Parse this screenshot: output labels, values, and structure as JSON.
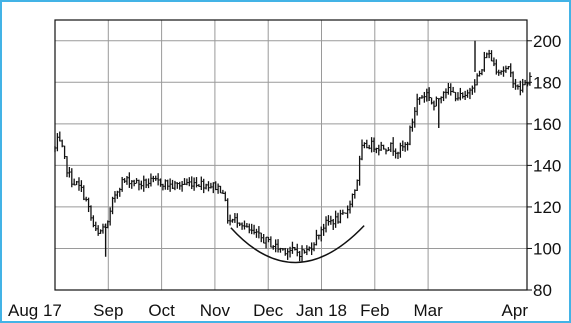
{
  "chart_data": {
    "type": "line",
    "style": "price bar chart (high-low bars)",
    "title": "",
    "xlabel": "",
    "ylabel": "",
    "x_tick_labels": [
      "Aug 17",
      "Sep",
      "Oct",
      "Nov",
      "Dec",
      "Jan 18",
      "Feb",
      "Mar",
      "Apr"
    ],
    "y_ticks": [
      80,
      100,
      120,
      140,
      160,
      180,
      200
    ],
    "ylim": [
      80,
      210
    ],
    "y_axis_position": "right",
    "grid": true,
    "annotation": "rounding-bottom arc under the Nov–Jan lows",
    "colors": {
      "frame": "#43b3e6",
      "price": "#111111",
      "grid": "#9a9a9a",
      "background": "#ffffff"
    },
    "series": [
      {
        "x_month_index": [
          0.0,
          0.05,
          0.12,
          0.2,
          0.3,
          0.4,
          0.5,
          0.6,
          0.7,
          0.8,
          0.9,
          1.0,
          1.1,
          1.25,
          1.4,
          1.6,
          1.8,
          2.0,
          2.2,
          2.4,
          2.6,
          2.8,
          3.0,
          3.15,
          3.25,
          3.45,
          3.6,
          3.8,
          4.0,
          4.2,
          4.4,
          4.6,
          4.75,
          4.9,
          5.0,
          5.15,
          5.3,
          5.45,
          5.55,
          5.65,
          5.75,
          5.9,
          6.1,
          6.3,
          6.45,
          6.6,
          6.8,
          7.0,
          7.1,
          7.3,
          7.5,
          7.7,
          7.8,
          8.0,
          8.1,
          8.3,
          8.5,
          8.7,
          8.95
        ],
        "close": [
          148,
          152,
          149,
          140,
          133,
          131,
          128,
          122,
          112,
          106,
          110,
          112,
          125,
          132,
          133,
          131,
          132,
          132,
          130,
          131,
          132,
          131,
          130,
          128,
          113,
          114,
          109,
          106,
          103,
          100,
          99,
          98,
          99,
          105,
          110,
          113,
          114,
          116,
          124,
          130,
          148,
          150,
          149,
          149,
          147,
          150,
          172,
          175,
          168,
          177,
          174,
          172,
          178,
          185,
          195,
          186,
          186,
          176,
          183
        ]
      }
    ]
  }
}
